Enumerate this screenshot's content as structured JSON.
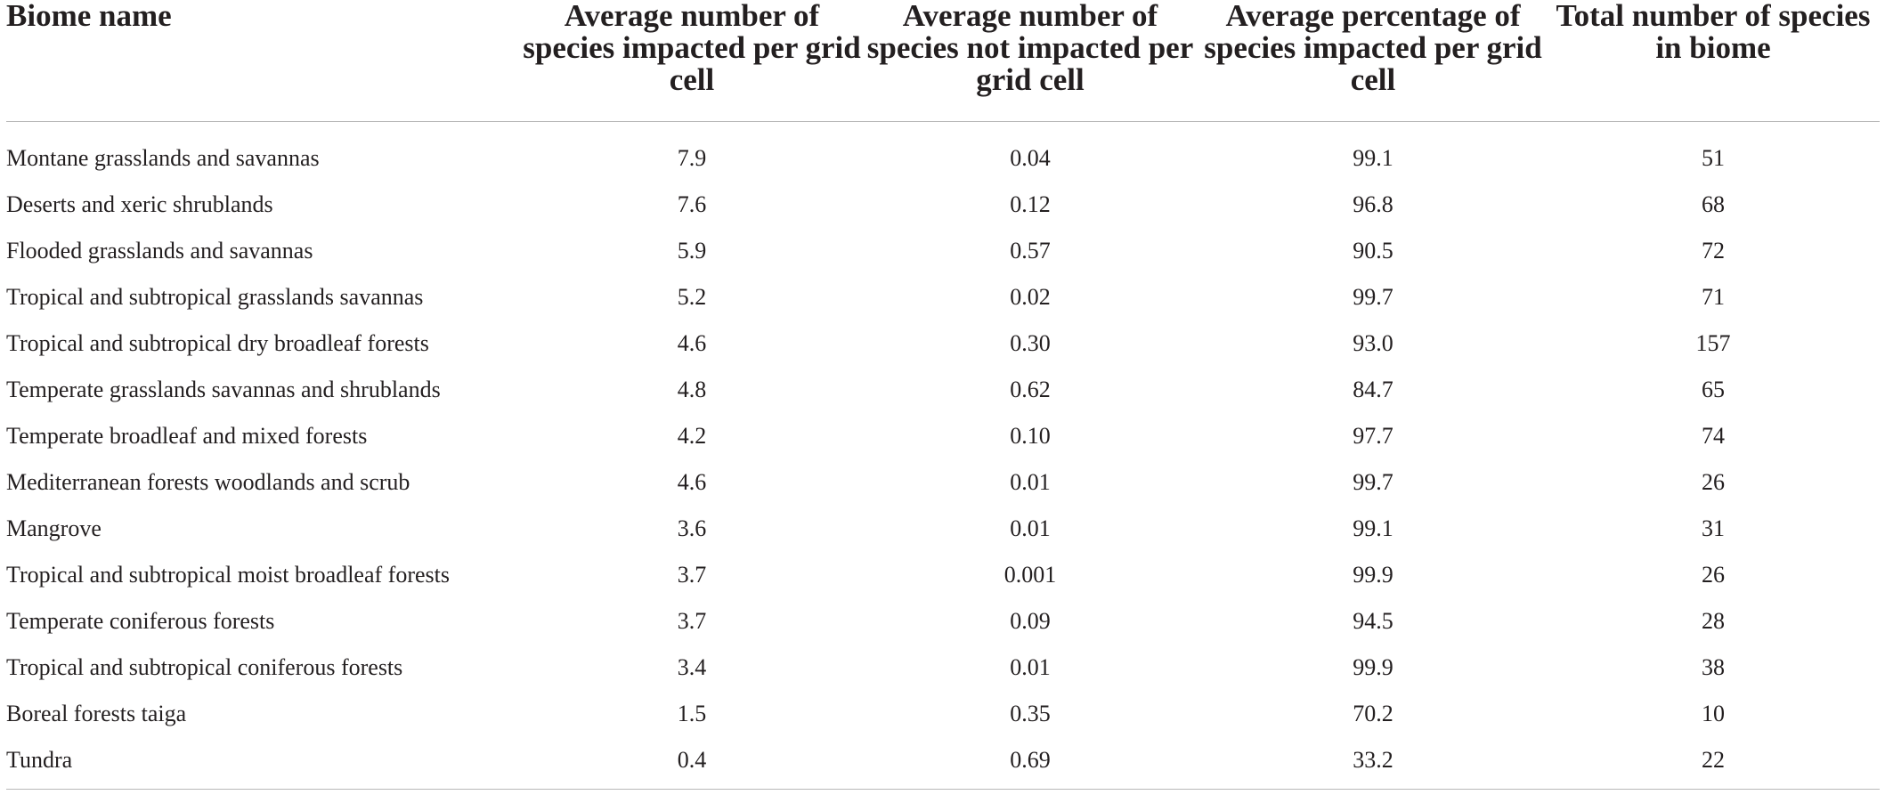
{
  "table": {
    "headers": [
      "Biome name",
      "Average number of species impacted per grid cell",
      "Average number of species not impacted per grid cell",
      "Average percentage of species impacted per grid cell",
      "Total number of species in biome"
    ],
    "rows": [
      [
        "Montane grasslands and savannas",
        "7.9",
        "0.04",
        "99.1",
        "51"
      ],
      [
        "Deserts and xeric shrublands",
        "7.6",
        "0.12",
        "96.8",
        "68"
      ],
      [
        "Flooded grasslands and savannas",
        "5.9",
        "0.57",
        "90.5",
        "72"
      ],
      [
        "Tropical and subtropical grasslands savannas",
        "5.2",
        "0.02",
        "99.7",
        "71"
      ],
      [
        "Tropical and subtropical dry broadleaf forests",
        "4.6",
        "0.30",
        "93.0",
        "157"
      ],
      [
        "Temperate grasslands savannas and shrublands",
        "4.8",
        "0.62",
        "84.7",
        "65"
      ],
      [
        "Temperate broadleaf and mixed forests",
        "4.2",
        "0.10",
        "97.7",
        "74"
      ],
      [
        "Mediterranean forests woodlands and scrub",
        "4.6",
        "0.01",
        "99.7",
        "26"
      ],
      [
        "Mangrove",
        "3.6",
        "0.01",
        "99.1",
        "31"
      ],
      [
        "Tropical and subtropical moist broadleaf forests",
        "3.7",
        "0.001",
        "99.9",
        "26"
      ],
      [
        "Temperate coniferous forests",
        "3.7",
        "0.09",
        "94.5",
        "28"
      ],
      [
        "Tropical and subtropical coniferous forests",
        "3.4",
        "0.01",
        "99.9",
        "38"
      ],
      [
        "Boreal forests taiga",
        "1.5",
        "0.35",
        "70.2",
        "10"
      ],
      [
        "Tundra",
        "0.4",
        "0.69",
        "33.2",
        "22"
      ]
    ]
  }
}
